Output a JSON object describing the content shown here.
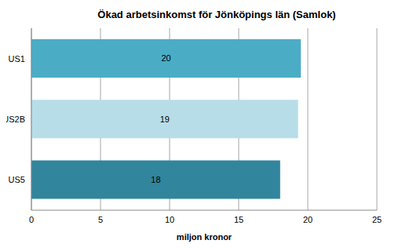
{
  "chart_data": {
    "type": "bar",
    "title": "Ökad arbetsinkomst för Jönköpings län (Samlok)",
    "orientation": "horizontal",
    "categories": [
      "US1",
      "US2B",
      "US5"
    ],
    "values": [
      19.5,
      19.3,
      18.0
    ],
    "value_labels": [
      "20",
      "19",
      "18"
    ],
    "data_labels": true,
    "colors": [
      "#4bacc6",
      "#b7dde8",
      "#31859c"
    ],
    "xlabel": "miljon kronor",
    "xlim": [
      0,
      25
    ],
    "xticks": [
      0,
      5,
      10,
      15,
      20,
      25
    ],
    "grid": true
  }
}
